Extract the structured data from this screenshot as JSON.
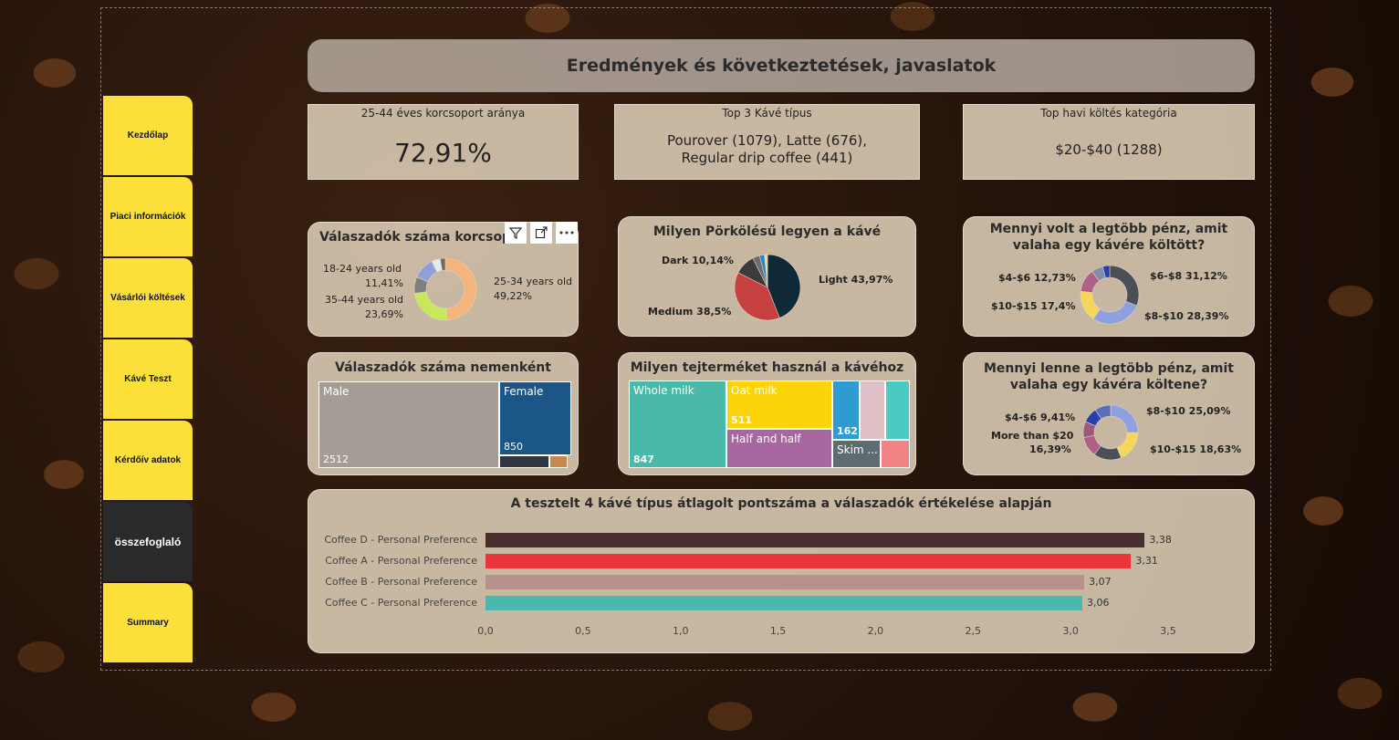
{
  "page_title": "Eredmények és következtetések, javaslatok",
  "nav": [
    "Kezdőlap",
    "Piaci információk",
    "Vásárlói költések",
    "Kávé Teszt",
    "Kérdőív adatok",
    "összefoglaló",
    "Summary"
  ],
  "kpis": {
    "age": {
      "label": "25-44 éves korcsoport  aránya",
      "value": "72,91%"
    },
    "coffee": {
      "label": "Top 3 Kávé típus",
      "value": "Pourover (1079), Latte (676), Regular drip coffee (441)"
    },
    "spend": {
      "label": "Top havi költés kategória",
      "value": "$20-$40 (1288)"
    }
  },
  "charts": {
    "age_donut": {
      "title": "Válaszadók száma korcsoport szerint",
      "labels": {
        "a": "18-24 years old",
        "a_pct": "11,41%",
        "b": "35-44 years old",
        "b_pct": "23,69%",
        "c": "25-34 years old",
        "c_pct": "49,22%"
      },
      "values": [
        49.22,
        23.69,
        8.5,
        11.41,
        4.5,
        2.68
      ],
      "colors": [
        "#f4b57d",
        "#c6e85a",
        "#7f7f7f",
        "#8fa0d8",
        "#e8e8e8",
        "#6b6b6b"
      ]
    },
    "roast_pie": {
      "title": "Milyen Pörkölésű legyen a kávé",
      "labels": {
        "dark": "Dark 10,14%",
        "light": "Light 43,97%",
        "medium": "Medium 38,5%"
      },
      "values": [
        43.97,
        38.5,
        10.14,
        3.5,
        2.4,
        1.49
      ],
      "colors": [
        "#0f2a36",
        "#c5403f",
        "#3b3b3b",
        "#6d6d6d",
        "#2a86c9",
        "#e8e0a0"
      ]
    },
    "max_spent": {
      "title": "Mennyi volt a legtöbb pénz, amit valaha egy kávére költött?",
      "labels": {
        "l1": "$4-$6 12,73%",
        "l2": "$10-$15 17,4%",
        "r1": "$6-$8 31,12%",
        "r2": "$8-$10 28,39%"
      },
      "values": [
        31.12,
        28.39,
        17.4,
        12.73,
        6.5,
        3.86
      ],
      "colors": [
        "#4a4f58",
        "#8ea0e0",
        "#f4d75a",
        "#b05f86",
        "#7f8faa",
        "#2b3fa8"
      ]
    },
    "gender": {
      "title": "Válaszadók száma nemenként",
      "male": "Male",
      "male_value": "2512",
      "female": "Female",
      "female_value": "850"
    },
    "dairy": {
      "title": "Milyen tejterméket használ a kávéhoz",
      "whole": "Whole milk",
      "whole_value": "847",
      "oat": "Oat milk",
      "oat_value": "511",
      "half": "Half and half",
      "small_value": "162",
      "skim": "Skim ..."
    },
    "would_spend": {
      "title": "Mennyi lenne a legtöbb pénz, amit valaha egy kávéra költene?",
      "labels": {
        "l1": "$4-$6 9,41%",
        "l2": "More than $20",
        "l2b": "16,39%",
        "r1": "$8-$10 25,09%",
        "r2": "$10-$15 18,63%"
      },
      "values": [
        25.09,
        18.63,
        16.39,
        12,
        9.41,
        9,
        9.48
      ],
      "colors": [
        "#8ea0e0",
        "#f4d75a",
        "#4a4f58",
        "#b05f86",
        "#9b5a7c",
        "#2b3fa8",
        "#5a6fb8"
      ]
    }
  },
  "chart_data": {
    "type": "bar",
    "title": "A tesztelt 4 kávé típus átlagolt pontszáma a válaszadók értékelése alapján",
    "categories": [
      "Coffee D - Personal Preference",
      "Coffee A - Personal Preference",
      "Coffee B - Personal Preference",
      "Coffee C - Personal Preference"
    ],
    "values": [
      3.38,
      3.31,
      3.07,
      3.06
    ],
    "value_labels": [
      "3,38",
      "3,31",
      "3,07",
      "3,06"
    ],
    "colors": [
      "#4a2e2e",
      "#e8343a",
      "#b8908c",
      "#4bb8ac"
    ],
    "xlim": [
      0,
      3.5
    ],
    "ticks": [
      0,
      0.5,
      1.0,
      1.5,
      2.0,
      2.5,
      3.0,
      3.5
    ],
    "tick_labels": [
      "0,0",
      "0,5",
      "1,0",
      "1,5",
      "2,0",
      "2,5",
      "3,0",
      "3,5"
    ],
    "xlabel": "",
    "ylabel": ""
  }
}
